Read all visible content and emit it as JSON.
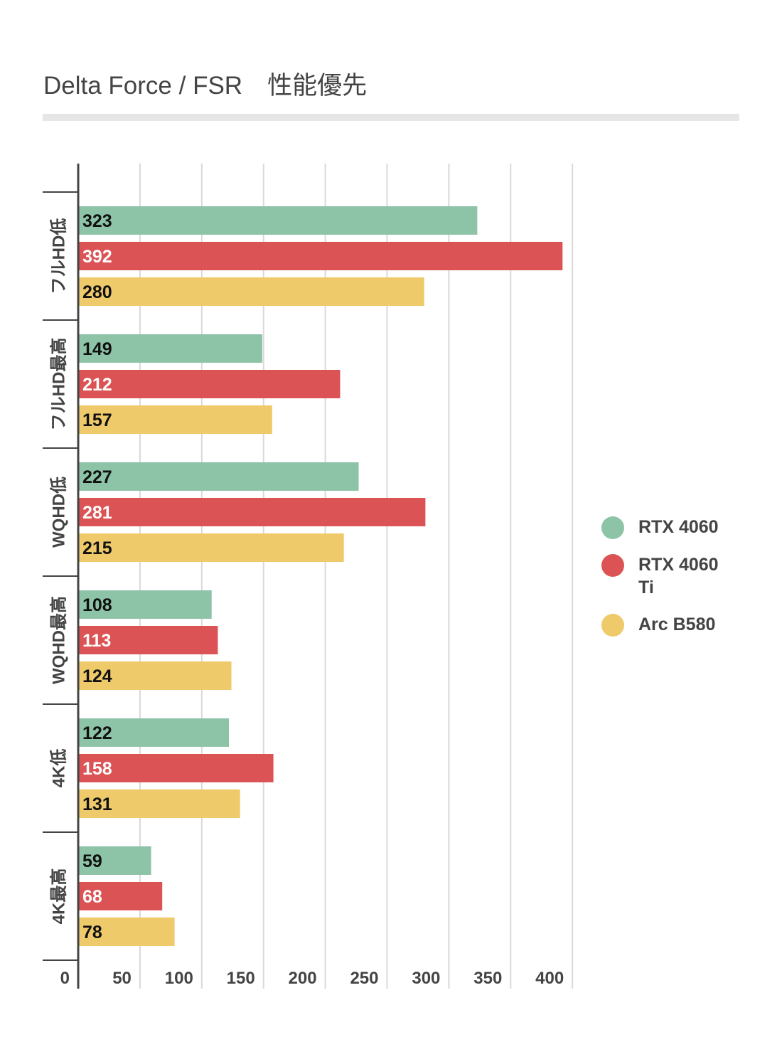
{
  "chart_data": {
    "type": "bar",
    "orientation": "horizontal",
    "title": "Delta Force / FSR　性能優先",
    "xlabel": "",
    "ylabel": "",
    "xlim": [
      0,
      400
    ],
    "x_ticks": [
      "0",
      "50",
      "100",
      "150",
      "200",
      "250",
      "300",
      "350",
      "400"
    ],
    "grid": true,
    "legend_position": "right",
    "categories": [
      "フルHD低",
      "フルHD最高",
      "WQHD低",
      "WQHD最高",
      "4K低",
      "4K最高"
    ],
    "series": [
      {
        "name": "RTX 4060",
        "color": "#8dc3a7",
        "label_color": "#111111",
        "values": [
          323,
          149,
          227,
          108,
          122,
          59
        ]
      },
      {
        "name": "RTX 4060 Ti",
        "color": "#db5355",
        "label_color": "#ffffff",
        "values": [
          392,
          212,
          281,
          113,
          158,
          68
        ]
      },
      {
        "name": "Arc B580",
        "color": "#efca6a",
        "label_color": "#111111",
        "values": [
          280,
          157,
          215,
          124,
          131,
          78
        ]
      }
    ]
  },
  "legend": {
    "items": [
      {
        "label": "RTX 4060",
        "color": "#8dc3a7"
      },
      {
        "label": "RTX 4060 Ti",
        "color": "#db5355"
      },
      {
        "label": "Arc B580",
        "color": "#efca6a"
      }
    ]
  }
}
